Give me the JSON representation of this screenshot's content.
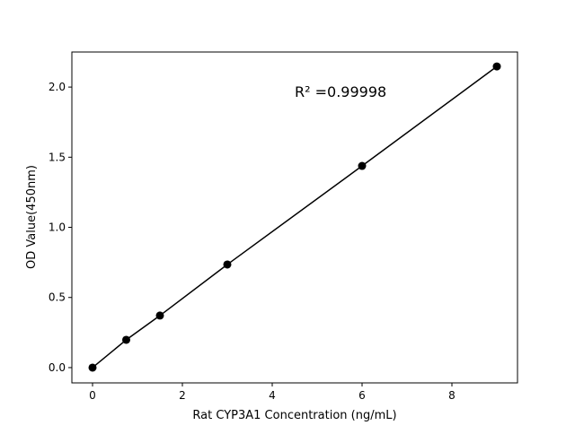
{
  "chart_data": {
    "type": "line",
    "title": "",
    "xlabel": "Rat CYP3A1 Concentration (ng/mL)",
    "ylabel": "OD Value(450nm)",
    "xlim": [
      -0.46,
      9.46
    ],
    "ylim": [
      -0.109,
      2.25
    ],
    "xticks": [
      0,
      2,
      4,
      6,
      8
    ],
    "xtick_labels": [
      "0",
      "2",
      "4",
      "6",
      "8"
    ],
    "yticks": [
      0.0,
      0.5,
      1.0,
      1.5,
      2.0
    ],
    "ytick_labels": [
      "0.0",
      "0.5",
      "1.0",
      "1.5",
      "2.0"
    ],
    "grid": false,
    "series": [
      {
        "x": [
          0,
          0.75,
          1.5,
          3,
          6,
          9
        ],
        "y": [
          0.0,
          0.198,
          0.371,
          0.735,
          1.438,
          2.147
        ],
        "color": "#000000",
        "marker": "circle"
      }
    ],
    "annotations": [
      {
        "text": "R² =0.99998",
        "x": 4.5,
        "y": 1.93
      }
    ]
  }
}
